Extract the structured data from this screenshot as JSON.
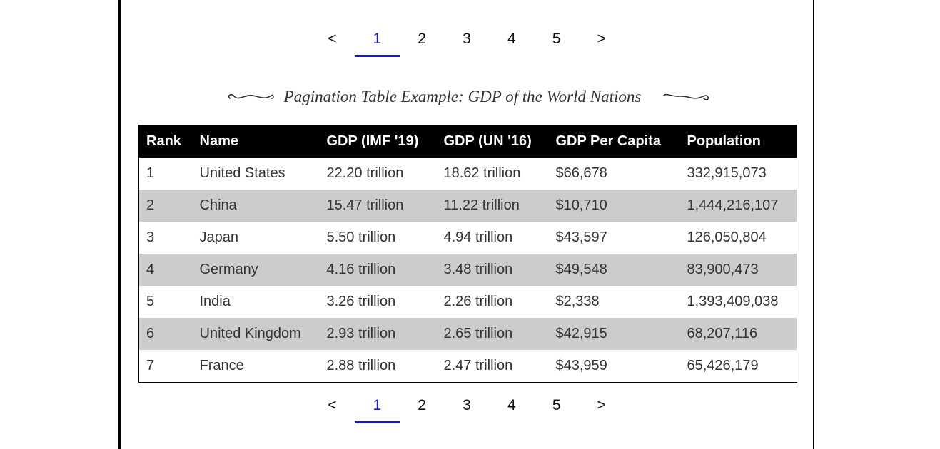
{
  "pagination": {
    "prev_label": "<",
    "next_label": ">",
    "pages": [
      "1",
      "2",
      "3",
      "4",
      "5"
    ],
    "active_page": "1"
  },
  "caption": {
    "text": "Pagination Table Example: GDP of the World Nations"
  },
  "table": {
    "headers": [
      "Rank",
      "Name",
      "GDP (IMF '19)",
      "GDP (UN '16)",
      "GDP Per Capita",
      "Population"
    ],
    "rows": [
      [
        "1",
        "United States",
        "22.20 trillion",
        "18.62 trillion",
        "$66,678",
        "332,915,073"
      ],
      [
        "2",
        "China",
        "15.47 trillion",
        "11.22 trillion",
        "$10,710",
        "1,444,216,107"
      ],
      [
        "3",
        "Japan",
        "5.50 trillion",
        "4.94 trillion",
        "$43,597",
        "126,050,804"
      ],
      [
        "4",
        "Germany",
        "4.16 trillion",
        "3.48 trillion",
        "$49,548",
        "83,900,473"
      ],
      [
        "5",
        "India",
        "3.26 trillion",
        "2.26 trillion",
        "$2,338",
        "1,393,409,038"
      ],
      [
        "6",
        "United Kingdom",
        "2.93 trillion",
        "2.65 trillion",
        "$42,915",
        "68,207,116"
      ],
      [
        "7",
        "France",
        "2.88 trillion",
        "2.47 trillion",
        "$43,959",
        "65,426,179"
      ]
    ]
  },
  "colors": {
    "active_page": "#1a1acc",
    "header_bg": "#000000",
    "stripe_bg": "#cccccc"
  }
}
